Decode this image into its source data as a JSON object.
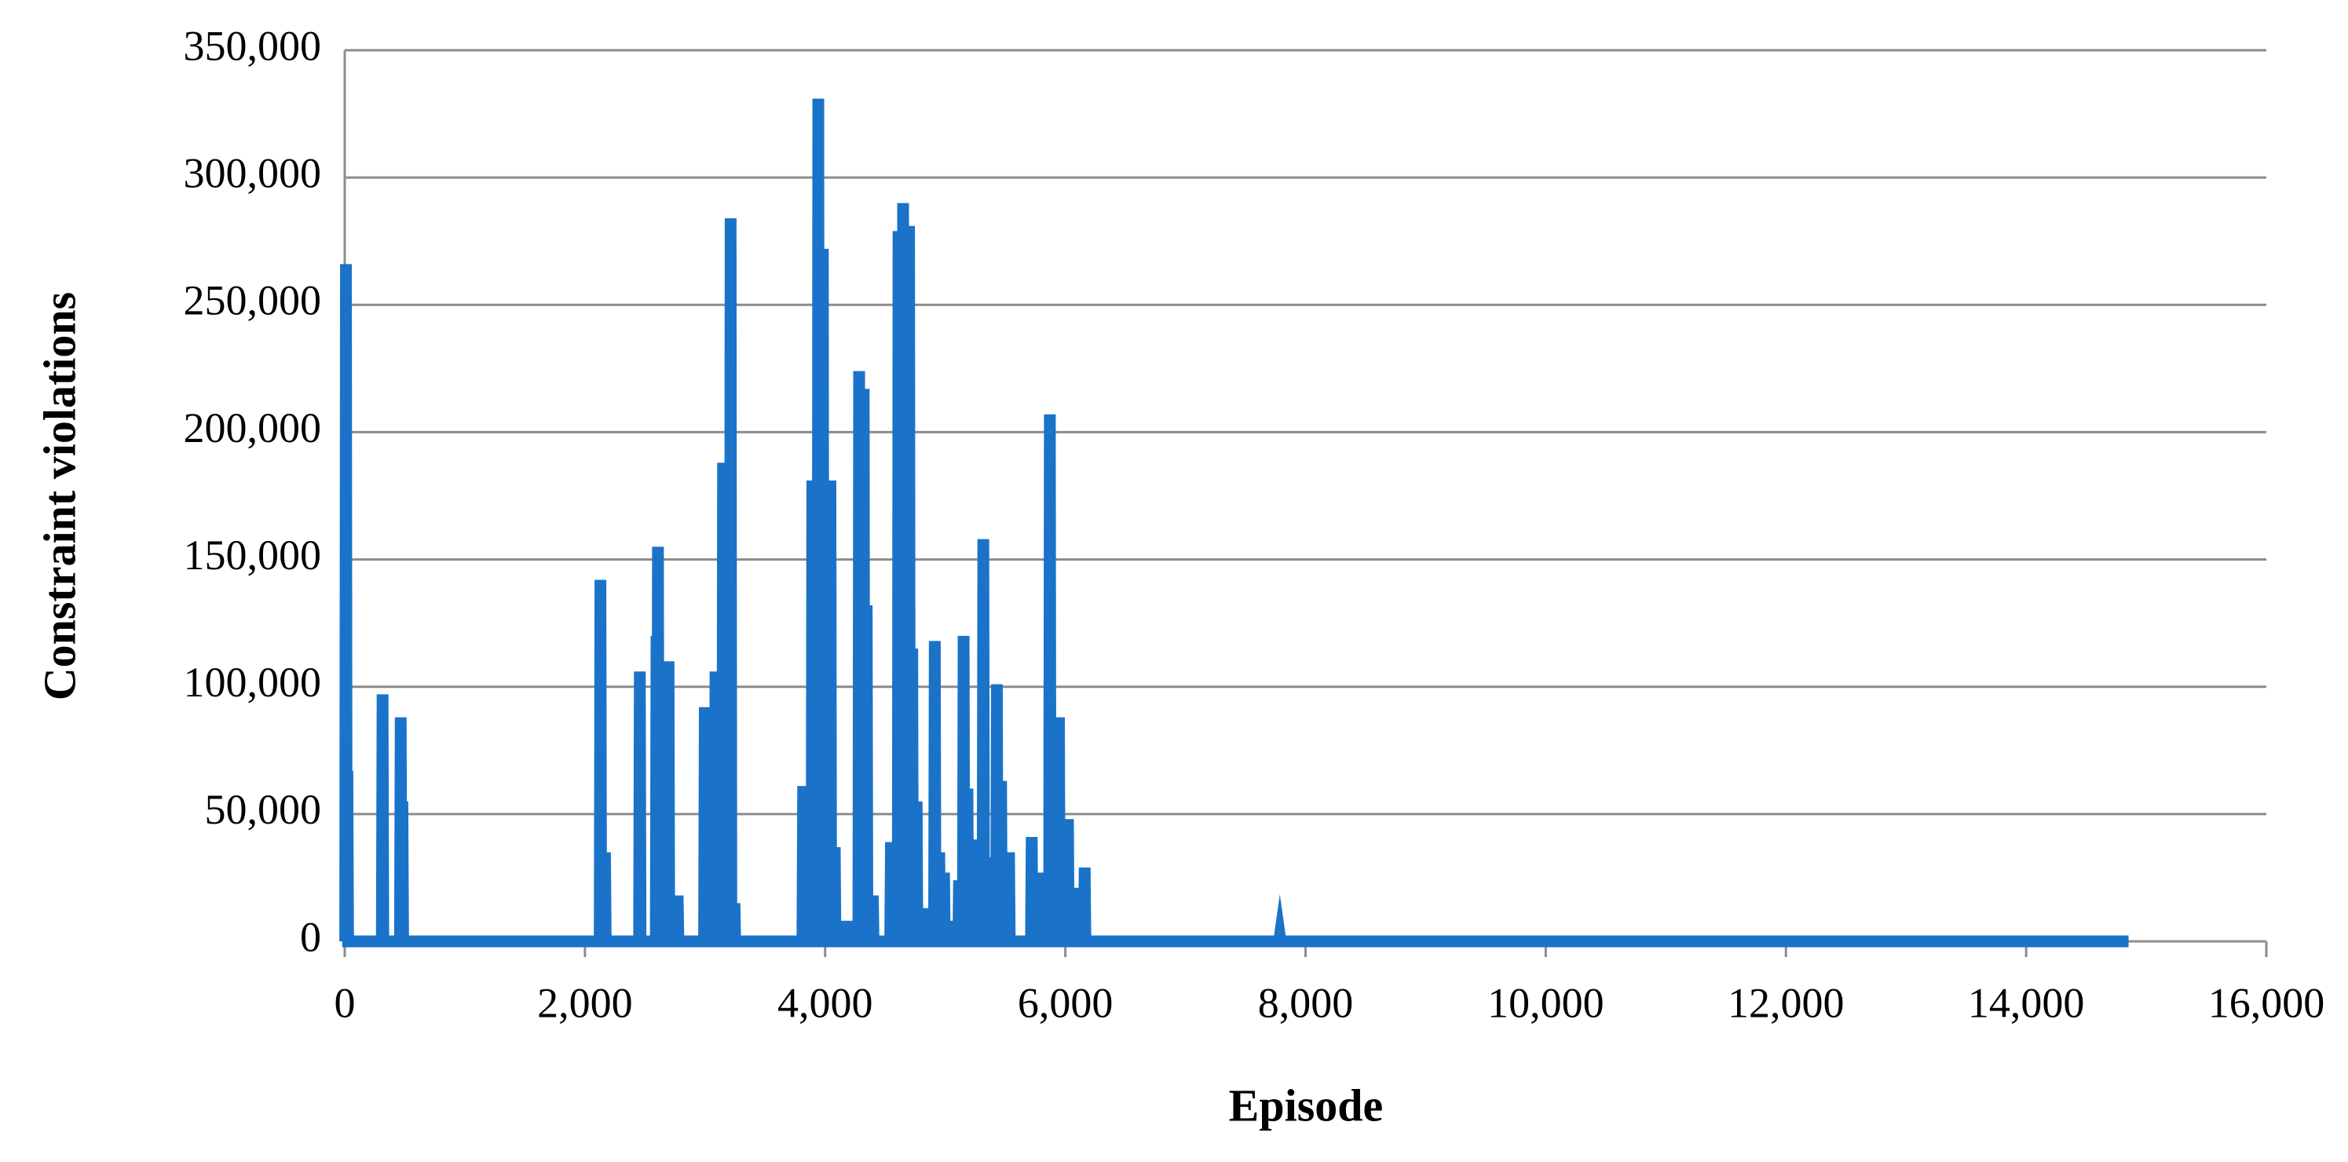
{
  "chart_data": {
    "type": "line",
    "x_label": "Episode",
    "y_label": "Constraint violations",
    "xlim": [
      0,
      16000
    ],
    "ylim": [
      0,
      350000
    ],
    "xticks": [
      0,
      {
        "value": 2000,
        "label": "2,000"
      },
      {
        "value": 4000,
        "label": "4,000"
      },
      {
        "value": 6000,
        "label": "6,000"
      },
      {
        "value": 8000,
        "label": "8,000"
      },
      {
        "value": 10000,
        "label": "10,000"
      },
      {
        "value": 12000,
        "label": "12,000"
      },
      {
        "value": 14000,
        "label": "14,000"
      },
      {
        "value": 16000,
        "label": "16,000"
      }
    ],
    "yticks": [
      0,
      {
        "value": 50000,
        "label": "50,000"
      },
      {
        "value": 100000,
        "label": "100,000"
      },
      {
        "value": 150000,
        "label": "150,000"
      },
      {
        "value": 200000,
        "label": "200,000"
      },
      {
        "value": 250000,
        "label": "250,000"
      },
      {
        "value": 300000,
        "label": "300,000"
      },
      {
        "value": 350000,
        "label": "350,000"
      }
    ],
    "grid": true,
    "x": [
      0,
      4,
      10,
      16,
      16,
      22,
      28,
      309,
      315,
      321,
      460,
      466,
      472,
      474,
      480,
      486,
      2123,
      2129,
      2135,
      2161,
      2167,
      2173,
      2451,
      2457,
      2463,
      2590,
      2596,
      2602,
      2602,
      2608,
      2614,
      2690,
      2696,
      2702,
      2766,
      2772,
      2778,
      2992,
      2998,
      3004,
      3081,
      3087,
      3093,
      3144,
      3150,
      3156,
      3207,
      3213,
      3219,
      3239,
      3245,
      3251,
      3811,
      3817,
      3823,
      3887,
      3893,
      3899,
      3937,
      3943,
      3949,
      3975,
      3981,
      3987,
      4038,
      4044,
      4050,
      4074,
      4080,
      4086,
      4177,
      4183,
      4189,
      4277,
      4283,
      4289,
      4315,
      4321,
      4327,
      4340,
      4346,
      4352,
      4391,
      4397,
      4403,
      4542,
      4548,
      4554,
      4605,
      4611,
      4617,
      4643,
      4649,
      4655,
      4693,
      4699,
      4705,
      4719,
      4725,
      4731,
      4756,
      4762,
      4768,
      4806,
      4812,
      4818,
      4907,
      4913,
      4919,
      4944,
      4950,
      4956,
      4984,
      4990,
      4996,
      5084,
      5090,
      5096,
      5109,
      5115,
      5121,
      5147,
      5153,
      5159,
      5179,
      5185,
      5191,
      5248,
      5254,
      5260,
      5311,
      5317,
      5323,
      5359,
      5365,
      5371,
      5424,
      5430,
      5436,
      5459,
      5465,
      5471,
      5525,
      5531,
      5537,
      5714,
      5720,
      5726,
      5764,
      5770,
      5776,
      5865,
      5871,
      5877,
      5941,
      5947,
      5953,
      6016,
      6022,
      6028,
      6064,
      6070,
      6076,
      6155,
      6161,
      6167,
      7780,
      7786,
      7792,
      14853
    ],
    "series": [
      {
        "color": "#1a73c9",
        "values": [
          0,
          0,
          266000,
          0,
          0,
          67000,
          0,
          0,
          97000,
          0,
          0,
          88000,
          0,
          0,
          55000,
          0,
          0,
          142000,
          0,
          0,
          35000,
          0,
          0,
          106000,
          0,
          0,
          120000,
          0,
          0,
          155000,
          0,
          0,
          110000,
          0,
          0,
          18000,
          0,
          0,
          92000,
          0,
          0,
          106000,
          0,
          0,
          188000,
          0,
          0,
          284000,
          0,
          0,
          15000,
          0,
          0,
          61000,
          0,
          0,
          181000,
          0,
          0,
          331000,
          0,
          0,
          272000,
          0,
          0,
          181000,
          0,
          0,
          37000,
          0,
          0,
          8000,
          0,
          0,
          224000,
          0,
          0,
          217000,
          0,
          0,
          132000,
          0,
          0,
          18000,
          0,
          0,
          39000,
          0,
          0,
          279000,
          0,
          0,
          290000,
          0,
          0,
          281000,
          0,
          0,
          115000,
          0,
          0,
          55000,
          0,
          0,
          13000,
          0,
          0,
          118000,
          0,
          0,
          35000,
          0,
          0,
          27000,
          0,
          0,
          8000,
          0,
          0,
          24000,
          0,
          0,
          120000,
          0,
          0,
          60000,
          0,
          0,
          40000,
          0,
          0,
          158000,
          0,
          0,
          33000,
          0,
          0,
          101000,
          0,
          0,
          63000,
          0,
          0,
          35000,
          0,
          0,
          41000,
          0,
          0,
          27000,
          0,
          0,
          207000,
          0,
          0,
          88000,
          0,
          0,
          48000,
          0,
          0,
          21000,
          0,
          0,
          29000,
          0,
          0,
          2000,
          0,
          0
        ]
      }
    ]
  }
}
